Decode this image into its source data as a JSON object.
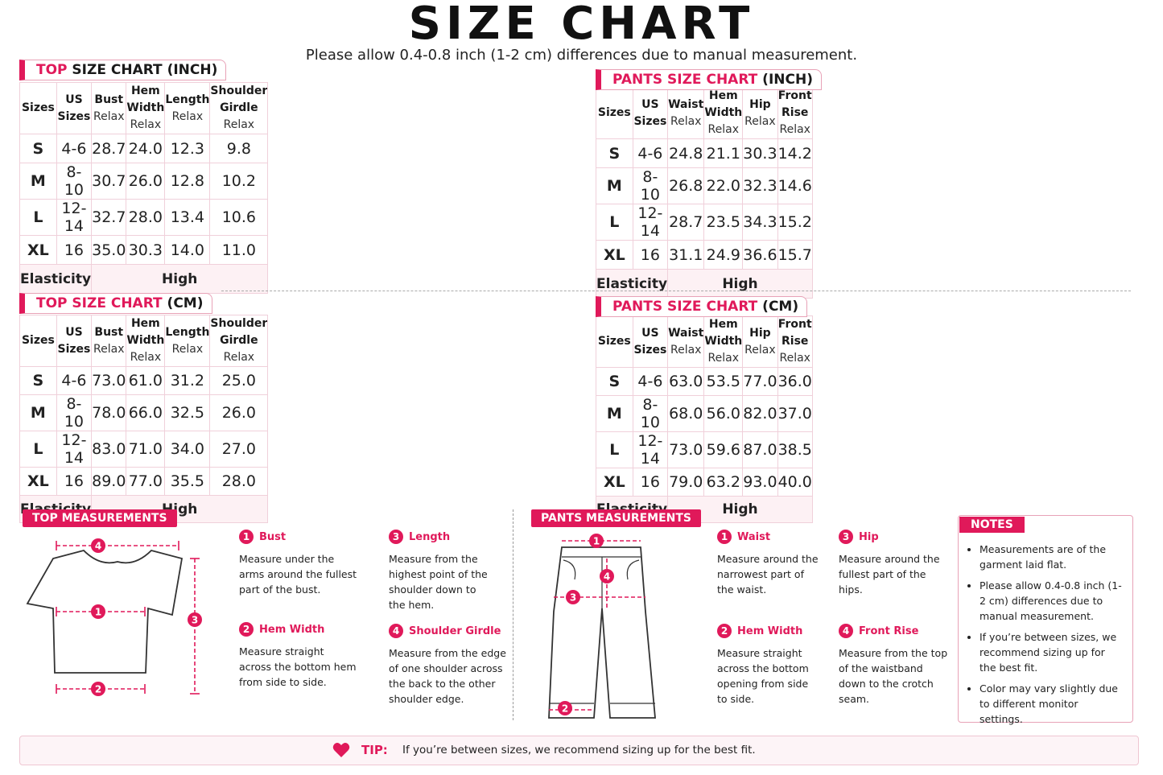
{
  "header": {
    "title": "SIZE CHART",
    "subtitle": "Please allow 0.4-0.8 inch (1-2 cm) differences due to manual measurement."
  },
  "top_inch": {
    "tag_main": "TOP",
    "tag_rest": " SIZE CHART",
    "tag_unit": " (INCH)",
    "headers": [
      {
        "name": "Sizes",
        "sub": ""
      },
      {
        "name": "US Sizes",
        "sub": ""
      },
      {
        "name": "Bust",
        "sub": "Relax"
      },
      {
        "name": "Hem Width",
        "sub": "Relax"
      },
      {
        "name": "Length",
        "sub": "Relax"
      },
      {
        "name": "Shoulder Girdle",
        "sub": "Relax"
      }
    ],
    "rows": [
      [
        "S",
        "4-6",
        "28.7",
        "24.0",
        "12.3",
        "9.8"
      ],
      [
        "M",
        "8-10",
        "30.7",
        "26.0",
        "12.8",
        "10.2"
      ],
      [
        "L",
        "12-14",
        "32.7",
        "28.0",
        "13.4",
        "10.6"
      ],
      [
        "XL",
        "16",
        "35.0",
        "30.3",
        "14.0",
        "11.0"
      ]
    ],
    "elasticity_label": "Elasticity",
    "elasticity_value": "High"
  },
  "pants_inch": {
    "tag_main": "PANTS SIZE CHART",
    "tag_unit": " (INCH)",
    "headers": [
      {
        "name": "Sizes",
        "sub": ""
      },
      {
        "name": "US Sizes",
        "sub": ""
      },
      {
        "name": "Waist",
        "sub": "Relax"
      },
      {
        "name": "Hem Width",
        "sub": "Relax"
      },
      {
        "name": "Hip",
        "sub": "Relax"
      },
      {
        "name": "Front Rise",
        "sub": "Relax"
      }
    ],
    "rows": [
      [
        "S",
        "4-6",
        "24.8",
        "21.1",
        "30.3",
        "14.2"
      ],
      [
        "M",
        "8-10",
        "26.8",
        "22.0",
        "32.3",
        "14.6"
      ],
      [
        "L",
        "12-14",
        "28.7",
        "23.5",
        "34.3",
        "15.2"
      ],
      [
        "XL",
        "16",
        "31.1",
        "24.9",
        "36.6",
        "15.7"
      ]
    ],
    "elasticity_label": "Elasticity",
    "elasticity_value": "High"
  },
  "top_cm": {
    "tag_main": "TOP SIZE CHART",
    "tag_unit": " (CM)",
    "headers": [
      {
        "name": "Sizes",
        "sub": ""
      },
      {
        "name": "US Sizes",
        "sub": ""
      },
      {
        "name": "Bust",
        "sub": "Relax"
      },
      {
        "name": "Hem Width",
        "sub": "Relax"
      },
      {
        "name": "Length",
        "sub": "Relax"
      },
      {
        "name": "Shoulder Girdle",
        "sub": "Relax"
      }
    ],
    "rows": [
      [
        "S",
        "4-6",
        "73.0",
        "61.0",
        "31.2",
        "25.0"
      ],
      [
        "M",
        "8-10",
        "78.0",
        "66.0",
        "32.5",
        "26.0"
      ],
      [
        "L",
        "12-14",
        "83.0",
        "71.0",
        "34.0",
        "27.0"
      ],
      [
        "XL",
        "16",
        "89.0",
        "77.0",
        "35.5",
        "28.0"
      ]
    ],
    "elasticity_label": "Elasticity",
    "elasticity_value": "High"
  },
  "pants_cm": {
    "tag_main": "PANTS SIZE CHART",
    "tag_unit": " (CM)",
    "headers": [
      {
        "name": "Sizes",
        "sub": ""
      },
      {
        "name": "US Sizes",
        "sub": ""
      },
      {
        "name": "Waist",
        "sub": "Relax"
      },
      {
        "name": "Hem Width",
        "sub": "Relax"
      },
      {
        "name": "Hip",
        "sub": "Relax"
      },
      {
        "name": "Front Rise",
        "sub": "Relax"
      }
    ],
    "rows": [
      [
        "S",
        "4-6",
        "63.0",
        "53.5",
        "77.0",
        "36.0"
      ],
      [
        "M",
        "8-10",
        "68.0",
        "56.0",
        "82.0",
        "37.0"
      ],
      [
        "L",
        "12-14",
        "73.0",
        "59.6",
        "87.0",
        "38.5"
      ],
      [
        "XL",
        "16",
        "79.0",
        "63.2",
        "93.0",
        "40.0"
      ]
    ],
    "elasticity_label": "Elasticity",
    "elasticity_value": "High"
  },
  "top_measurements": {
    "tag": "TOP MEASUREMENTS",
    "diagram_numbers": [
      "1",
      "2",
      "3",
      "4"
    ],
    "items": [
      {
        "num": "1",
        "name": "Bust",
        "desc": "Measure under the arms around the fullest part of the bust."
      },
      {
        "num": "2",
        "name": "Hem Width",
        "desc": "Measure straight across the bottom hem from side to side."
      },
      {
        "num": "3",
        "name": "Length",
        "desc": "Measure from the highest point of the shoulder down to the hem."
      },
      {
        "num": "4",
        "name": "Shoulder Girdle",
        "desc": "Measure from the edge of one shoulder across the back to the other shoulder edge."
      }
    ]
  },
  "pants_measurements": {
    "tag": "PANTS MEASUREMENTS",
    "diagram_numbers": [
      "1",
      "2",
      "3",
      "4"
    ],
    "items": [
      {
        "num": "1",
        "name": "Waist",
        "desc": "Measure around the narrowest part of the waist."
      },
      {
        "num": "2",
        "name": "Hem Width",
        "desc": "Measure straight across the bottom opening from side to side."
      },
      {
        "num": "3",
        "name": "Hip",
        "desc": "Measure around the fullest part of the hips."
      },
      {
        "num": "4",
        "name": "Front Rise",
        "desc": "Measure from the top of the waistband down to the crotch seam."
      }
    ]
  },
  "notes": {
    "tag": "NOTES",
    "items": [
      "Measurements are of the garment laid flat.",
      "Please allow 0.4-0.8 inch (1-2 cm) differences due to manual measurement.",
      "If you’re between sizes, we recommend sizing up for the best fit.",
      "Color may vary slightly due to different monitor settings."
    ]
  },
  "tip": {
    "label": "TIP:",
    "text": "If you’re between sizes, we recommend sizing up for the best fit."
  },
  "colors": {
    "accent": "#e0195a",
    "row_tint": "#fdf1f4",
    "border": "#f0d0da"
  }
}
